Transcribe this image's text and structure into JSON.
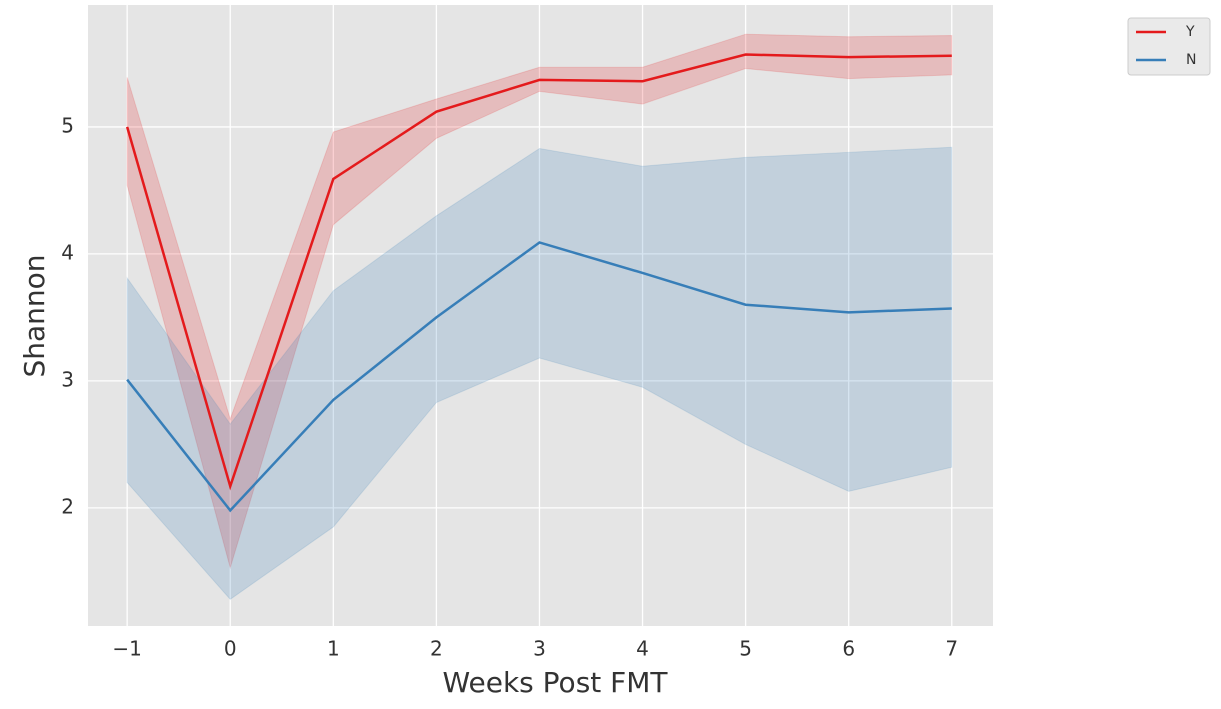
{
  "chart_data": {
    "type": "line",
    "xlabel": "Weeks Post FMT",
    "ylabel": "Shannon",
    "x": [
      -1,
      0,
      1,
      2,
      3,
      4,
      5,
      6,
      7
    ],
    "series": [
      {
        "name": "Y",
        "color": "#e41a1c",
        "values": [
          5.0,
          2.17,
          4.59,
          5.12,
          5.37,
          5.36,
          5.57,
          5.55,
          5.56
        ],
        "lower": [
          4.54,
          1.53,
          4.23,
          4.91,
          5.28,
          5.18,
          5.46,
          5.38,
          5.41
        ],
        "upper": [
          5.39,
          2.7,
          4.96,
          5.22,
          5.47,
          5.47,
          5.73,
          5.71,
          5.72
        ]
      },
      {
        "name": "N",
        "color": "#377eb8",
        "values": [
          3.01,
          1.98,
          2.85,
          3.5,
          4.09,
          3.85,
          3.6,
          3.54,
          3.57
        ],
        "lower": [
          2.2,
          1.28,
          1.85,
          2.83,
          3.18,
          2.95,
          2.5,
          2.13,
          2.32
        ],
        "upper": [
          3.81,
          2.66,
          3.71,
          4.3,
          4.83,
          4.69,
          4.76,
          4.8,
          4.84
        ]
      }
    ],
    "xlim": [
      -1.38,
      7.4
    ],
    "ylim": [
      1.07,
      5.96
    ],
    "xticks": [
      {
        "value": -1,
        "label": "−1"
      },
      0,
      1,
      2,
      3,
      4,
      5,
      6,
      7
    ],
    "yticks": [
      2,
      3,
      4,
      5
    ],
    "grid": true,
    "legend": "outside upper right"
  }
}
